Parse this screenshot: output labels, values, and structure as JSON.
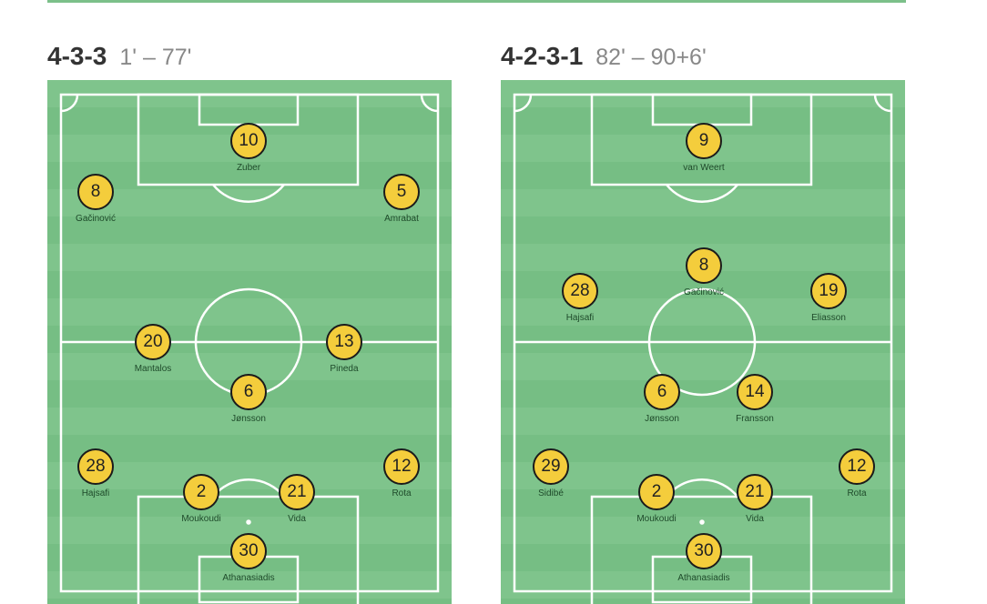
{
  "formations": [
    {
      "shape": "4-3-3",
      "time": "1' – 77'",
      "players": [
        {
          "number": "10",
          "name": "Zuber"
        },
        {
          "number": "8",
          "name": "Gačinović"
        },
        {
          "number": "5",
          "name": "Amrabat"
        },
        {
          "number": "20",
          "name": "Mantalos"
        },
        {
          "number": "13",
          "name": "Pineda"
        },
        {
          "number": "6",
          "name": "Jønsson"
        },
        {
          "number": "28",
          "name": "Hajsafi"
        },
        {
          "number": "12",
          "name": "Rota"
        },
        {
          "number": "2",
          "name": "Moukoudi"
        },
        {
          "number": "21",
          "name": "Vida"
        },
        {
          "number": "30",
          "name": "Athanasiadis"
        }
      ]
    },
    {
      "shape": "4-2-3-1",
      "time": "82' – 90+6'",
      "players": [
        {
          "number": "9",
          "name": "van Weert"
        },
        {
          "number": "8",
          "name": "Gačinović"
        },
        {
          "number": "28",
          "name": "Hajsafi"
        },
        {
          "number": "19",
          "name": "Eliasson"
        },
        {
          "number": "6",
          "name": "Jønsson"
        },
        {
          "number": "14",
          "name": "Fransson"
        },
        {
          "number": "29",
          "name": "Sidibé"
        },
        {
          "number": "12",
          "name": "Rota"
        },
        {
          "number": "2",
          "name": "Moukoudi"
        },
        {
          "number": "21",
          "name": "Vida"
        },
        {
          "number": "30",
          "name": "Athanasiadis"
        }
      ]
    }
  ],
  "colors": {
    "pitch": "#7fc48c",
    "player": "#f4cd3c"
  }
}
